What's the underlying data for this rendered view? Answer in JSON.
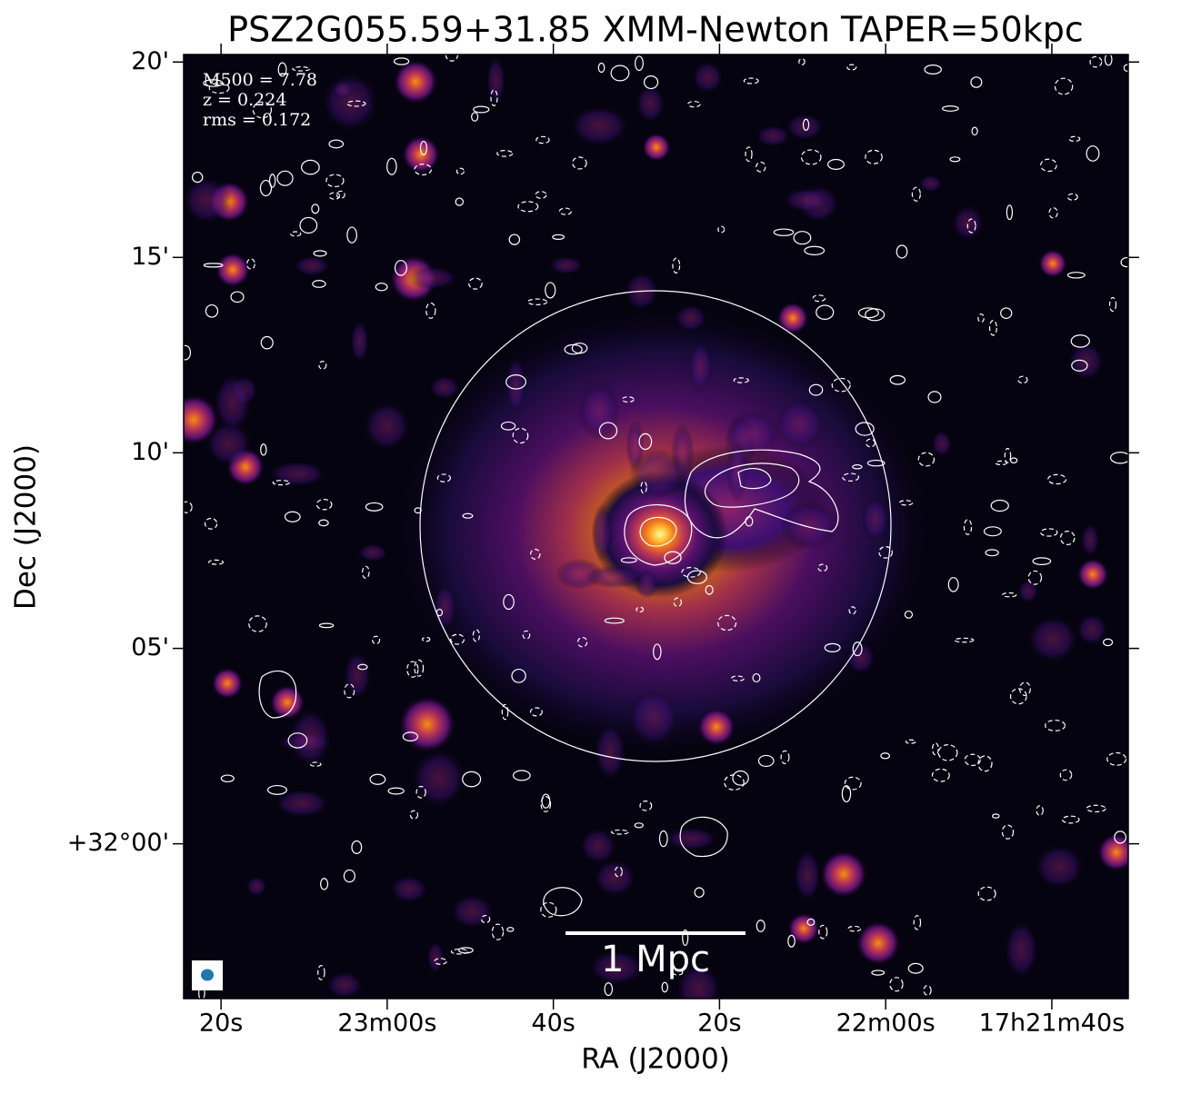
{
  "chart_data": {
    "type": "image",
    "title": "PSZ2G055.59+31.85 XMM-Newton TAPER=50kpc",
    "xlabel": "RA (J2000)",
    "ylabel": "Dec (J2000)",
    "xlim": [
      1404.5,
      1290.8
    ],
    "xticks": [
      {
        "value": 1400,
        "label": "20s"
      },
      {
        "value": 1380,
        "label": "23m00s"
      },
      {
        "value": 1360,
        "label": "40s"
      },
      {
        "value": 1340,
        "label": "20s"
      },
      {
        "value": 1320,
        "label": "22m00s"
      },
      {
        "value": 1300,
        "label": "17h21m40s"
      }
    ],
    "ylim": [
      31.934,
      32.3365
    ],
    "yticks": [
      {
        "value": 32.3333,
        "label": "20'"
      },
      {
        "value": 32.25,
        "label": "15'"
      },
      {
        "value": 32.1667,
        "label": "10'"
      },
      {
        "value": 32.0833,
        "label": "05'"
      },
      {
        "value": 32.0,
        "label": "+32°00'"
      }
    ],
    "annotations": [
      "M500 = 7.78",
      "z = 0.224",
      "rms = 0.172"
    ],
    "scalebar_label": "1 Mpc"
  }
}
